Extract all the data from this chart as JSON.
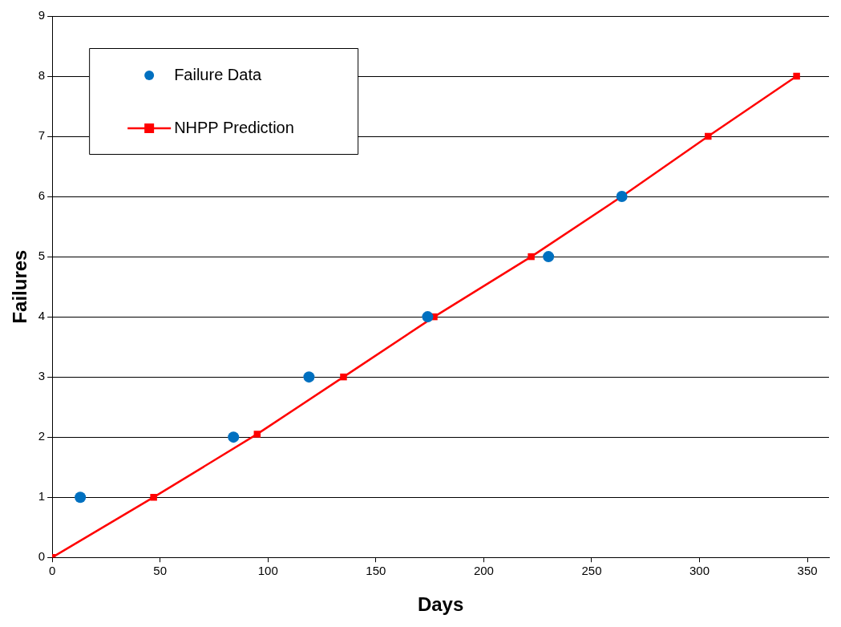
{
  "chart_data": {
    "type": "scatter",
    "xlabel": "Days",
    "ylabel": "Failures",
    "xlim": [
      0,
      360
    ],
    "ylim": [
      0,
      9
    ],
    "xticks": [
      0,
      50,
      100,
      150,
      200,
      250,
      300,
      350
    ],
    "yticks": [
      0,
      1,
      2,
      3,
      4,
      5,
      6,
      7,
      8,
      9
    ],
    "grid": "y",
    "legend": "top left",
    "series": [
      {
        "name": "Failure Data",
        "color": "#0070c0",
        "marker": "circle",
        "x": [
          13,
          84,
          119,
          174,
          230,
          264
        ],
        "values": [
          1,
          2,
          3,
          4,
          5,
          6
        ]
      },
      {
        "name": "NHPP Prediction",
        "type": "line",
        "color": "#ff0000",
        "marker": "square",
        "line_style": "solid",
        "x": [
          0,
          47,
          95,
          135,
          177,
          222,
          264,
          304,
          345
        ],
        "values": [
          0,
          1,
          2.05,
          3,
          4,
          5,
          6,
          7,
          8
        ]
      }
    ]
  }
}
